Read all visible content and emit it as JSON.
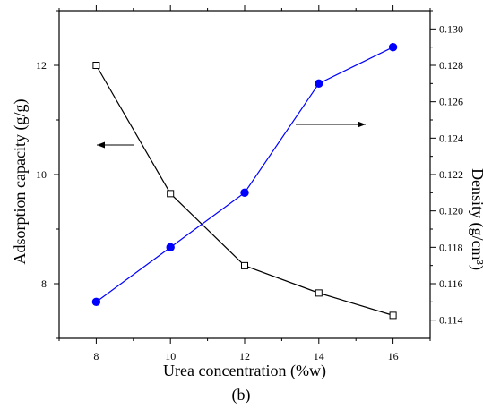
{
  "chart_data": {
    "type": "line",
    "caption": "(b)",
    "xlabel": "Urea concentration (%w)",
    "ylabel_left": "Adsorption capacity (g/g)",
    "ylabel_right": "Density (g/cm³)",
    "xlim": [
      7,
      17
    ],
    "ylim_left": [
      7.0,
      13.0
    ],
    "ylim_right": [
      0.113,
      0.131
    ],
    "x_ticks": [
      8,
      10,
      12,
      14,
      16
    ],
    "y_left_ticks": [
      8,
      10,
      12
    ],
    "y_right_ticks": [
      0.114,
      0.116,
      0.118,
      0.12,
      0.122,
      0.124,
      0.126,
      0.128,
      0.13
    ],
    "x_tick_labels": [
      "8",
      "10",
      "12",
      "14",
      "16"
    ],
    "y_left_tick_labels": [
      "8",
      "10",
      "12"
    ],
    "y_right_tick_labels": [
      "0.114",
      "0.116",
      "0.118",
      "0.120",
      "0.122",
      "0.124",
      "0.126",
      "0.128",
      "0.130"
    ],
    "grid": false,
    "series": [
      {
        "axis": "left",
        "marker": "open-square",
        "color": "#000000",
        "x": [
          8,
          10,
          12,
          14,
          16
        ],
        "values": [
          12.0,
          9.65,
          8.33,
          7.83,
          7.42
        ]
      },
      {
        "axis": "right",
        "marker": "filled-circle",
        "color": "#0000ff",
        "x": [
          8,
          10,
          12,
          14,
          16
        ],
        "values": [
          0.115,
          0.118,
          0.121,
          0.127,
          0.129
        ]
      }
    ],
    "arrows": [
      {
        "points_to": "left"
      },
      {
        "points_to": "right"
      }
    ]
  }
}
